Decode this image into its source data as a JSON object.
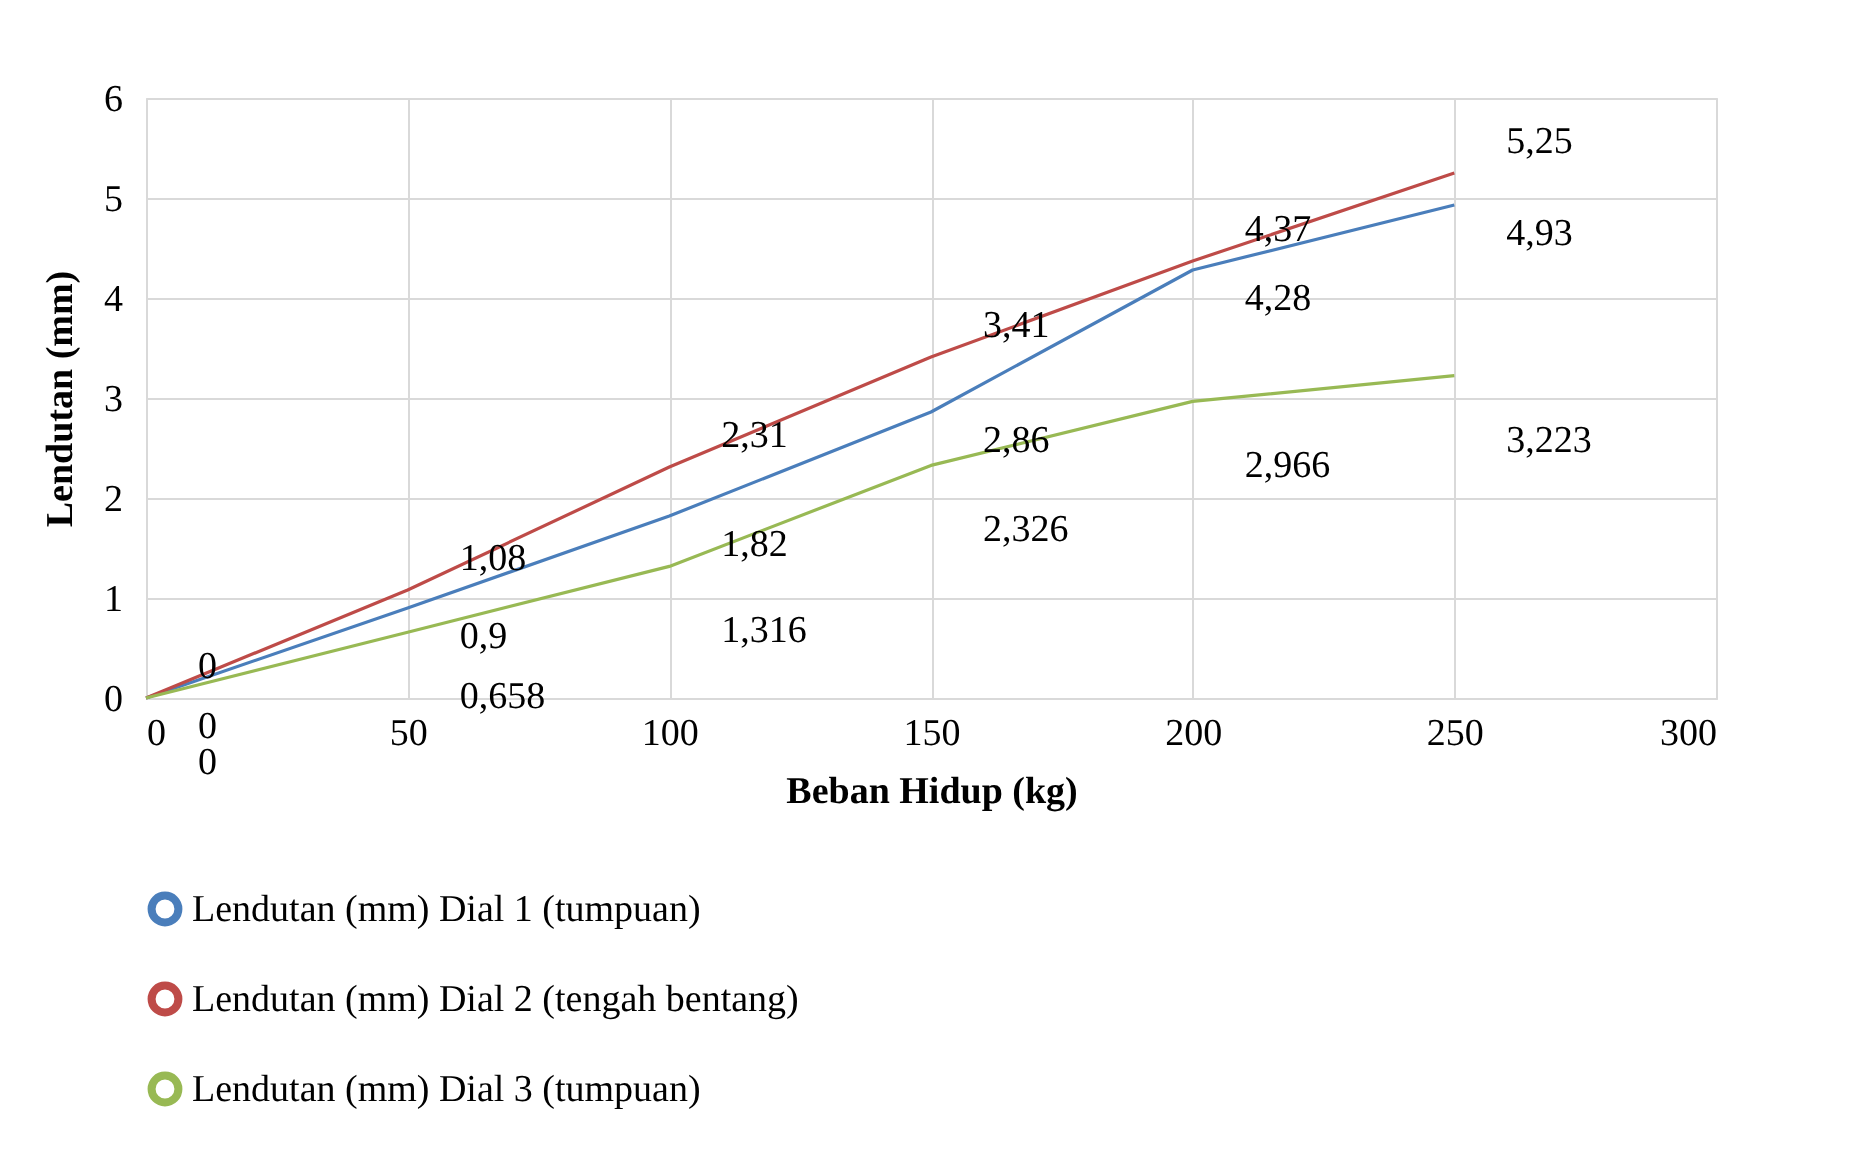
{
  "chart_data": {
    "type": "line",
    "xlabel": "Beban Hidup (kg)",
    "ylabel": "Lendutan (mm)",
    "x": [
      0,
      50,
      100,
      150,
      200,
      250
    ],
    "series": [
      {
        "name": "Lendutan (mm) Dial 1 (tumpuan)",
        "color": "#4a7ebb",
        "values": [
          0,
          0.9,
          1.82,
          2.86,
          4.28,
          4.93
        ],
        "value_labels": [
          "0",
          "0,9",
          "1,82",
          "2,86",
          "4,28",
          "4,93"
        ]
      },
      {
        "name": "Lendutan (mm) Dial 2 (tengah bentang)",
        "color": "#be4b48",
        "values": [
          0,
          1.08,
          2.31,
          3.41,
          4.37,
          5.25
        ],
        "value_labels": [
          "0",
          "1,08",
          "2,31",
          "3,41",
          "4,37",
          "5,25"
        ]
      },
      {
        "name": "Lendutan (mm) Dial 3 (tumpuan)",
        "color": "#98b954",
        "values": [
          0,
          0.658,
          1.316,
          2.326,
          2.966,
          3.223
        ],
        "value_labels": [
          "0",
          "0,658",
          "1,316",
          "2,326",
          "2,966",
          "3,223"
        ]
      }
    ],
    "xlim": [
      0,
      300
    ],
    "xticks": [
      0,
      50,
      100,
      150,
      200,
      250,
      300
    ],
    "ylim": [
      0,
      6
    ],
    "yticks": [
      0,
      1,
      2,
      3,
      4,
      5,
      6
    ],
    "grid": true,
    "legend": "bottom",
    "marker": "none",
    "line_style": "solid"
  }
}
